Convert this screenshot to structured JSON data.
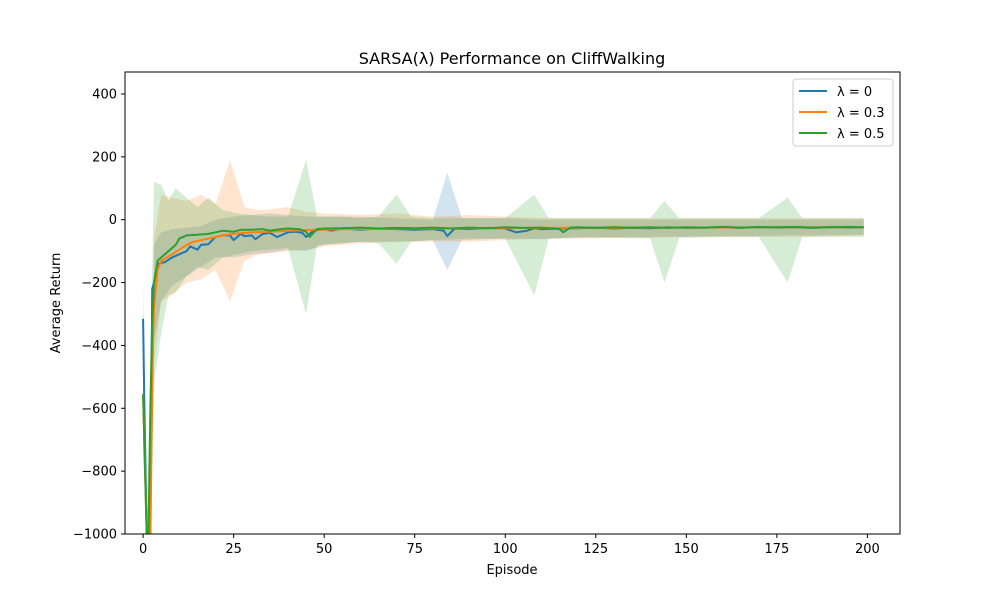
{
  "chart_data": {
    "type": "line",
    "title": "SARSA(λ) Performance on CliffWalking",
    "xlabel": "Episode",
    "ylabel": "Average Return",
    "xlim": [
      -5,
      209
    ],
    "ylim": [
      -1000,
      470
    ],
    "xticks": [
      0,
      25,
      50,
      75,
      100,
      125,
      150,
      175,
      200
    ],
    "yticks": [
      -1000,
      -800,
      -600,
      -400,
      -200,
      0,
      200,
      400
    ],
    "ytick_labels": [
      "−1000",
      "−800",
      "−600",
      "−400",
      "−200",
      "0",
      "200",
      "400"
    ],
    "legend_position": "upper right",
    "grid": false,
    "series": [
      {
        "name": "λ = 0",
        "color": "#1f77b4",
        "points": [
          [
            0,
            -315
          ],
          [
            0.3,
            -560
          ],
          [
            1,
            -1000
          ],
          [
            2,
            -1000
          ],
          [
            2.5,
            -220
          ],
          [
            3,
            -200
          ],
          [
            4,
            -140
          ],
          [
            6,
            -135
          ],
          [
            8,
            -120
          ],
          [
            10,
            -110
          ],
          [
            12,
            -100
          ],
          [
            13,
            -85
          ],
          [
            15,
            -95
          ],
          [
            16,
            -80
          ],
          [
            18,
            -78
          ],
          [
            20,
            -55
          ],
          [
            22,
            -50
          ],
          [
            24,
            -50
          ],
          [
            25,
            -65
          ],
          [
            27,
            -45
          ],
          [
            28,
            -52
          ],
          [
            30,
            -50
          ],
          [
            31,
            -62
          ],
          [
            33,
            -45
          ],
          [
            35,
            -42
          ],
          [
            37,
            -55
          ],
          [
            40,
            -40
          ],
          [
            42,
            -38
          ],
          [
            44,
            -42
          ],
          [
            45,
            -55
          ],
          [
            47,
            -35
          ],
          [
            50,
            -30
          ],
          [
            52,
            -35
          ],
          [
            55,
            -28
          ],
          [
            60,
            -32
          ],
          [
            65,
            -28
          ],
          [
            70,
            -30
          ],
          [
            75,
            -32
          ],
          [
            80,
            -30
          ],
          [
            83,
            -35
          ],
          [
            84,
            -52
          ],
          [
            86,
            -28
          ],
          [
            90,
            -30
          ],
          [
            95,
            -26
          ],
          [
            100,
            -28
          ],
          [
            103,
            -40
          ],
          [
            106,
            -35
          ],
          [
            108,
            -27
          ],
          [
            110,
            -30
          ],
          [
            115,
            -28
          ],
          [
            120,
            -27
          ],
          [
            125,
            -25
          ],
          [
            130,
            -28
          ],
          [
            135,
            -26
          ],
          [
            140,
            -27
          ],
          [
            145,
            -24
          ],
          [
            150,
            -26
          ],
          [
            155,
            -25
          ],
          [
            160,
            -24
          ],
          [
            165,
            -26
          ],
          [
            170,
            -23
          ],
          [
            175,
            -25
          ],
          [
            180,
            -24
          ],
          [
            185,
            -26
          ],
          [
            190,
            -23
          ],
          [
            195,
            -25
          ],
          [
            199,
            -24
          ]
        ],
        "band": [
          [
            0,
            -200,
            -450
          ],
          [
            0.3,
            -400,
            -700
          ],
          [
            1,
            -1000,
            -1000
          ],
          [
            2,
            -1000,
            -1000
          ],
          [
            3,
            -80,
            -380
          ],
          [
            5,
            -40,
            -260
          ],
          [
            8,
            -30,
            -210
          ],
          [
            12,
            -25,
            -180
          ],
          [
            16,
            -20,
            -150
          ],
          [
            20,
            0,
            -120
          ],
          [
            25,
            10,
            -120
          ],
          [
            30,
            15,
            -110
          ],
          [
            35,
            20,
            -105
          ],
          [
            40,
            15,
            -95
          ],
          [
            45,
            10,
            -100
          ],
          [
            50,
            10,
            -80
          ],
          [
            60,
            10,
            -70
          ],
          [
            70,
            5,
            -70
          ],
          [
            80,
            0,
            -65
          ],
          [
            84,
            150,
            -160
          ],
          [
            88,
            5,
            -65
          ],
          [
            100,
            5,
            -60
          ],
          [
            110,
            0,
            -62
          ],
          [
            120,
            0,
            -55
          ],
          [
            140,
            0,
            -55
          ],
          [
            160,
            0,
            -52
          ],
          [
            180,
            0,
            -50
          ],
          [
            199,
            0,
            -48
          ]
        ]
      },
      {
        "name": "λ = 0.3",
        "color": "#ff7f0e",
        "points": [
          [
            0,
            -555
          ],
          [
            1,
            -1000
          ],
          [
            2,
            -1000
          ],
          [
            2.7,
            -400
          ],
          [
            3,
            -280
          ],
          [
            4,
            -160
          ],
          [
            5,
            -130
          ],
          [
            8,
            -110
          ],
          [
            10,
            -95
          ],
          [
            12,
            -80
          ],
          [
            14,
            -70
          ],
          [
            16,
            -65
          ],
          [
            18,
            -60
          ],
          [
            20,
            -55
          ],
          [
            22,
            -50
          ],
          [
            25,
            -45
          ],
          [
            30,
            -40
          ],
          [
            35,
            -38
          ],
          [
            40,
            -35
          ],
          [
            45,
            -33
          ],
          [
            50,
            -32
          ],
          [
            55,
            -30
          ],
          [
            60,
            -30
          ],
          [
            70,
            -28
          ],
          [
            80,
            -28
          ],
          [
            90,
            -27
          ],
          [
            100,
            -27
          ],
          [
            110,
            -26
          ],
          [
            120,
            -26
          ],
          [
            130,
            -26
          ],
          [
            140,
            -25
          ],
          [
            150,
            -25
          ],
          [
            160,
            -25
          ],
          [
            170,
            -24
          ],
          [
            180,
            -24
          ],
          [
            190,
            -24
          ],
          [
            199,
            -24
          ]
        ],
        "band": [
          [
            0,
            -380,
            -730
          ],
          [
            1,
            -1000,
            -1000
          ],
          [
            2,
            -1000,
            -1000
          ],
          [
            3,
            -60,
            -450
          ],
          [
            5,
            80,
            -260
          ],
          [
            8,
            70,
            -240
          ],
          [
            12,
            60,
            -200
          ],
          [
            16,
            80,
            -190
          ],
          [
            20,
            50,
            -160
          ],
          [
            24,
            190,
            -260
          ],
          [
            28,
            40,
            -130
          ],
          [
            32,
            30,
            -110
          ],
          [
            40,
            40,
            -100
          ],
          [
            45,
            25,
            -95
          ],
          [
            50,
            20,
            -85
          ],
          [
            60,
            15,
            -75
          ],
          [
            70,
            20,
            -70
          ],
          [
            80,
            10,
            -70
          ],
          [
            90,
            15,
            -70
          ],
          [
            100,
            10,
            -65
          ],
          [
            110,
            5,
            -60
          ],
          [
            120,
            5,
            -60
          ],
          [
            130,
            5,
            -58
          ],
          [
            140,
            5,
            -58
          ],
          [
            150,
            5,
            -55
          ],
          [
            160,
            5,
            -55
          ],
          [
            170,
            5,
            -55
          ],
          [
            180,
            5,
            -55
          ],
          [
            190,
            5,
            -52
          ],
          [
            199,
            5,
            -50
          ]
        ]
      },
      {
        "name": "λ = 0.5",
        "color": "#2ca02c",
        "points": [
          [
            0,
            -555
          ],
          [
            1,
            -1000
          ],
          [
            1.5,
            -1000
          ],
          [
            2,
            -600
          ],
          [
            2.5,
            -330
          ],
          [
            3,
            -200
          ],
          [
            4,
            -130
          ],
          [
            6,
            -110
          ],
          [
            8,
            -90
          ],
          [
            9,
            -80
          ],
          [
            10,
            -60
          ],
          [
            12,
            -50
          ],
          [
            15,
            -48
          ],
          [
            18,
            -45
          ],
          [
            20,
            -40
          ],
          [
            22,
            -35
          ],
          [
            25,
            -38
          ],
          [
            27,
            -32
          ],
          [
            30,
            -32
          ],
          [
            33,
            -30
          ],
          [
            35,
            -35
          ],
          [
            38,
            -30
          ],
          [
            40,
            -28
          ],
          [
            43,
            -30
          ],
          [
            45,
            -38
          ],
          [
            46,
            -55
          ],
          [
            48,
            -30
          ],
          [
            50,
            -28
          ],
          [
            55,
            -27
          ],
          [
            60,
            -25
          ],
          [
            65,
            -28
          ],
          [
            70,
            -26
          ],
          [
            75,
            -27
          ],
          [
            80,
            -25
          ],
          [
            85,
            -28
          ],
          [
            90,
            -25
          ],
          [
            95,
            -27
          ],
          [
            100,
            -24
          ],
          [
            105,
            -26
          ],
          [
            110,
            -25
          ],
          [
            115,
            -30
          ],
          [
            116,
            -40
          ],
          [
            118,
            -25
          ],
          [
            120,
            -24
          ],
          [
            125,
            -26
          ],
          [
            130,
            -24
          ],
          [
            135,
            -25
          ],
          [
            140,
            -24
          ],
          [
            145,
            -26
          ],
          [
            150,
            -24
          ],
          [
            155,
            -25
          ],
          [
            160,
            -23
          ],
          [
            165,
            -25
          ],
          [
            170,
            -24
          ],
          [
            175,
            -24
          ],
          [
            180,
            -23
          ],
          [
            185,
            -25
          ],
          [
            190,
            -24
          ],
          [
            195,
            -23
          ],
          [
            199,
            -24
          ]
        ],
        "band": [
          [
            0,
            -380,
            -740
          ],
          [
            1,
            -1000,
            -1000
          ],
          [
            2,
            -420,
            -800
          ],
          [
            3,
            120,
            -520
          ],
          [
            5,
            110,
            -360
          ],
          [
            7,
            60,
            -240
          ],
          [
            9,
            100,
            -230
          ],
          [
            12,
            70,
            -180
          ],
          [
            15,
            40,
            -150
          ],
          [
            18,
            70,
            -160
          ],
          [
            22,
            30,
            -120
          ],
          [
            26,
            20,
            -110
          ],
          [
            30,
            15,
            -100
          ],
          [
            35,
            10,
            -95
          ],
          [
            40,
            10,
            -90
          ],
          [
            45,
            190,
            -300
          ],
          [
            48,
            10,
            -80
          ],
          [
            55,
            10,
            -75
          ],
          [
            60,
            5,
            -70
          ],
          [
            65,
            10,
            -75
          ],
          [
            70,
            80,
            -140
          ],
          [
            74,
            10,
            -70
          ],
          [
            80,
            5,
            -65
          ],
          [
            90,
            5,
            -60
          ],
          [
            100,
            5,
            -60
          ],
          [
            108,
            80,
            -240
          ],
          [
            112,
            5,
            -60
          ],
          [
            120,
            5,
            -58
          ],
          [
            130,
            5,
            -58
          ],
          [
            140,
            5,
            -60
          ],
          [
            144,
            60,
            -200
          ],
          [
            148,
            5,
            -58
          ],
          [
            160,
            5,
            -55
          ],
          [
            170,
            5,
            -55
          ],
          [
            178,
            70,
            -200
          ],
          [
            182,
            5,
            -55
          ],
          [
            190,
            5,
            -55
          ],
          [
            199,
            5,
            -55
          ]
        ]
      }
    ]
  }
}
